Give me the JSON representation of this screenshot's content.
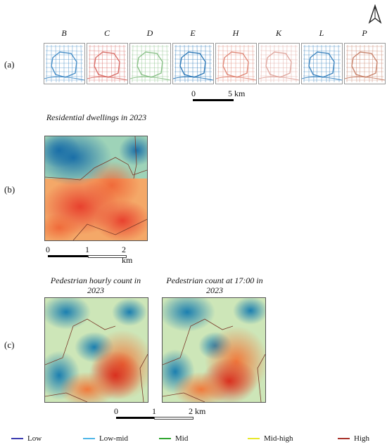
{
  "panels": {
    "a_label": "(a)",
    "b_label": "(b)",
    "c_label": "(c)"
  },
  "columns": [
    "B",
    "C",
    "D",
    "E",
    "H",
    "K",
    "L",
    "P"
  ],
  "mini_map_colors": [
    "#4a90c8",
    "#d9706a",
    "#8cc28a",
    "#2f7ab8",
    "#e08a7a",
    "#e0a8a0",
    "#3f86c0",
    "#c9856e"
  ],
  "scale_a": {
    "start": "0",
    "end": "5 km"
  },
  "panel_b": {
    "title": "Residential dwellings in 2023"
  },
  "scale_b": {
    "start": "0",
    "mid": "1",
    "end": "2 km"
  },
  "panel_c": {
    "left_title": "Pedestrian hourly count in 2023",
    "right_title": "Pedestrian count at 17:00 in 2023"
  },
  "scale_c": {
    "start": "0",
    "mid": "1",
    "end": "2 km"
  },
  "legend": [
    {
      "label": "Low",
      "color": "#3b3bb0"
    },
    {
      "label": "Low-mid",
      "color": "#4fb6e8"
    },
    {
      "label": "Mid",
      "color": "#2fa52f"
    },
    {
      "label": "Mid-high",
      "color": "#e8e82a"
    },
    {
      "label": "High",
      "color": "#a8322a"
    }
  ],
  "icons": {
    "north": "north-arrow-icon"
  }
}
